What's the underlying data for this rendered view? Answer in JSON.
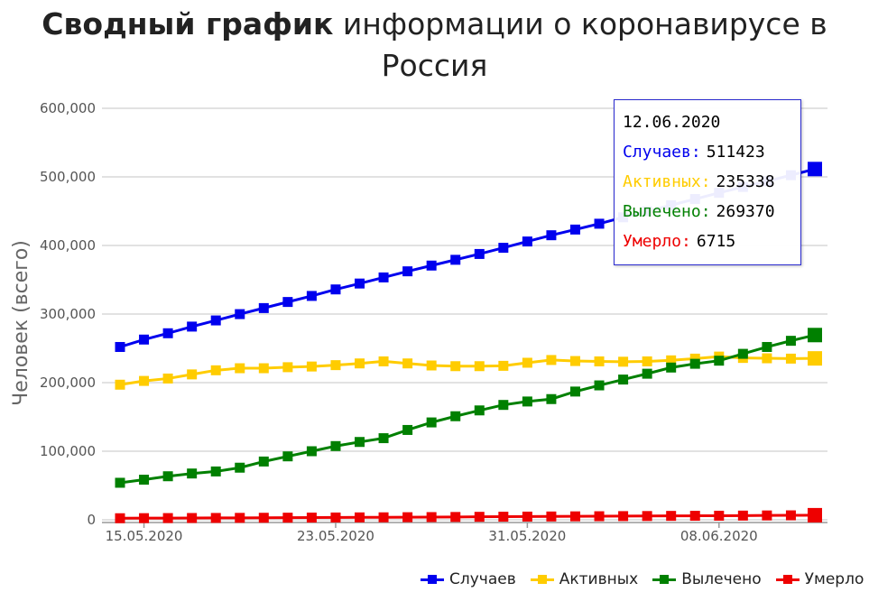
{
  "chart_data": {
    "type": "line",
    "title_bold": "Сводный график",
    "title_rest": " информации о коронавирусе в Россия",
    "xlabel": "",
    "ylabel": "Человек (всего)",
    "ylim": [
      0,
      600000
    ],
    "yticks": [
      0,
      100000,
      200000,
      300000,
      400000,
      500000,
      600000
    ],
    "ytick_labels": [
      "0",
      "100,000",
      "200,000",
      "300,000",
      "400,000",
      "500,000",
      "600,000"
    ],
    "xtick_labels": [
      "15.05.2020",
      "23.05.2020",
      "31.05.2020",
      "08.06.2020"
    ],
    "xtick_indices": [
      1,
      9,
      17,
      25
    ],
    "x": [
      "14.05.2020",
      "15.05.2020",
      "16.05.2020",
      "17.05.2020",
      "18.05.2020",
      "19.05.2020",
      "20.05.2020",
      "21.05.2020",
      "22.05.2020",
      "23.05.2020",
      "24.05.2020",
      "25.05.2020",
      "26.05.2020",
      "27.05.2020",
      "28.05.2020",
      "29.05.2020",
      "30.05.2020",
      "31.05.2020",
      "01.06.2020",
      "02.06.2020",
      "03.06.2020",
      "04.06.2020",
      "05.06.2020",
      "06.06.2020",
      "07.06.2020",
      "08.06.2020",
      "09.06.2020",
      "10.06.2020",
      "11.06.2020",
      "12.06.2020"
    ],
    "grid": true,
    "legend_position": "bottom-right",
    "series": [
      {
        "name": "Случаев",
        "color": "#0000ee",
        "values": [
          252000,
          262800,
          272000,
          281700,
          290700,
          299900,
          308700,
          317600,
          326400,
          335900,
          344500,
          353400,
          362300,
          370700,
          379100,
          387600,
          396600,
          405800,
          414900,
          423200,
          431700,
          441100,
          449800,
          458700,
          467700,
          476700,
          485300,
          493700,
          502400,
          511423
        ]
      },
      {
        "name": "Активных",
        "color": "#ffcc00",
        "values": [
          197000,
          202500,
          206000,
          212000,
          218000,
          221000,
          221000,
          222500,
          223500,
          225500,
          228000,
          231000,
          228000,
          225000,
          224000,
          224000,
          224500,
          229000,
          233000,
          231500,
          231000,
          230500,
          231000,
          232500,
          235000,
          238000,
          236000,
          235500,
          235000,
          235338
        ]
      },
      {
        "name": "Вылечено",
        "color": "#008000",
        "values": [
          54000,
          58500,
          63500,
          67500,
          70500,
          76000,
          85000,
          92500,
          100000,
          107500,
          113500,
          119000,
          131000,
          142000,
          151000,
          159500,
          167500,
          172500,
          176000,
          187000,
          196000,
          204500,
          213000,
          222000,
          227500,
          232000,
          242000,
          252000,
          261000,
          269370
        ]
      },
      {
        "name": "Умерло",
        "color": "#ee0000",
        "values": [
          2305,
          2418,
          2537,
          2631,
          2722,
          2837,
          2972,
          3099,
          3249,
          3388,
          3541,
          3633,
          3807,
          3968,
          4142,
          4374,
          4555,
          4693,
          4855,
          5037,
          5215,
          5384,
          5520,
          5725,
          5859,
          5971,
          6142,
          6358,
          6532,
          6715
        ]
      }
    ]
  },
  "tooltip": {
    "date": "12.06.2020",
    "rows": [
      {
        "label": "Случаев:",
        "value": "511423",
        "color": "#0000ee"
      },
      {
        "label": "Активных:",
        "value": "235338",
        "color": "#ffcc00"
      },
      {
        "label": "Вылечено:",
        "value": "269370",
        "color": "#008000"
      },
      {
        "label": "Умерло:",
        "value": "6715",
        "color": "#ee0000"
      }
    ]
  }
}
